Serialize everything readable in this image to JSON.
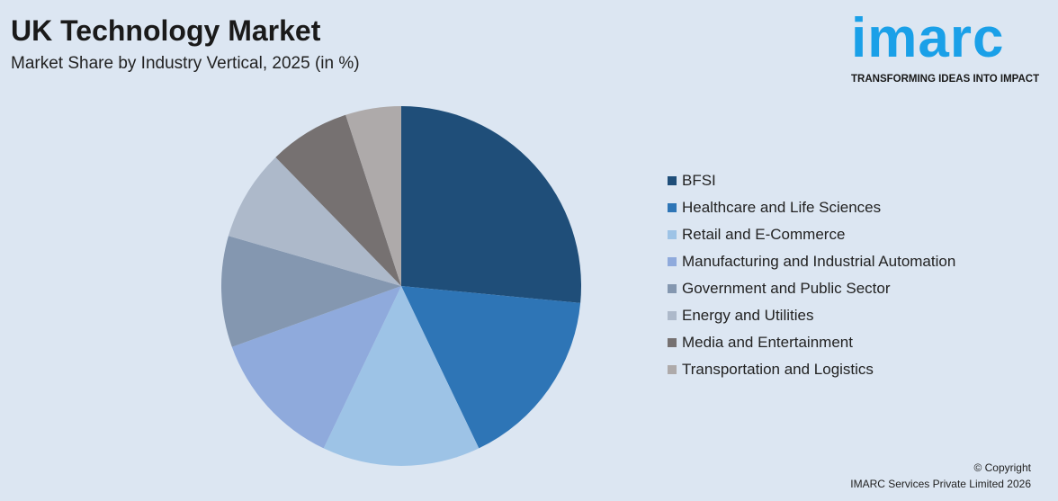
{
  "header": {
    "title": "UK Technology Market",
    "subtitle": "Market Share by Industry Vertical, 2025 (in %)"
  },
  "logo": {
    "word": "imarc",
    "tagline": "TRANSFORMING IDEAS INTO IMPACT"
  },
  "footer": {
    "copyright": "© Copyright",
    "company": "IMARC Services Private Limited 2026"
  },
  "chart_data": {
    "type": "pie",
    "title": "UK Technology Market",
    "subtitle": "Market Share by Industry Vertical, 2025 (in %)",
    "legend_position": "right",
    "categories": [
      "BFSI",
      "Healthcare and Life Sciences",
      "Retail and E-Commerce",
      "Manufacturing and Industrial Automation",
      "Government and Public Sector",
      "Energy and Utilities",
      "Media and Entertainment",
      "Transportation and Logistics"
    ],
    "values": [
      26.5,
      16.4,
      14.2,
      12.4,
      10.0,
      8.2,
      7.3,
      5.0
    ],
    "colors": [
      "#1f4e79",
      "#2e75b6",
      "#9dc3e6",
      "#8faadc",
      "#8497b0",
      "#adb9ca",
      "#767171",
      "#aeaaaa"
    ]
  }
}
